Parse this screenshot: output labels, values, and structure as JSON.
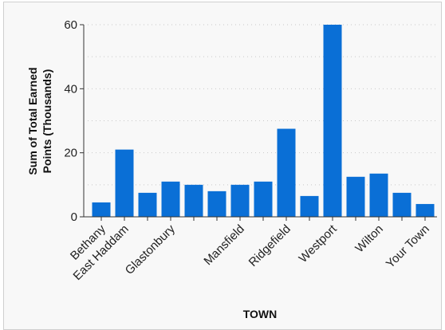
{
  "chart_data": {
    "type": "bar",
    "title": "",
    "xlabel": "TOWN",
    "ylabel_lines": [
      "Sum of Total Earned",
      "Points (Thousands)"
    ],
    "ylim": [
      0,
      60
    ],
    "yticks": [
      0,
      20,
      40,
      60
    ],
    "grid": true,
    "bar_color": "#0a6fd6",
    "categories": [
      "Bethany",
      "East Haddam",
      "",
      "Glastonbury",
      "",
      "",
      "Mansfield",
      "",
      "Ridgefield",
      "",
      "Westport",
      "",
      "Wilton",
      "",
      "Your Town"
    ],
    "values": [
      4.5,
      21,
      7.5,
      11,
      10,
      8,
      10,
      11,
      27.5,
      6.5,
      60,
      12.5,
      13.5,
      7.5,
      4
    ]
  }
}
